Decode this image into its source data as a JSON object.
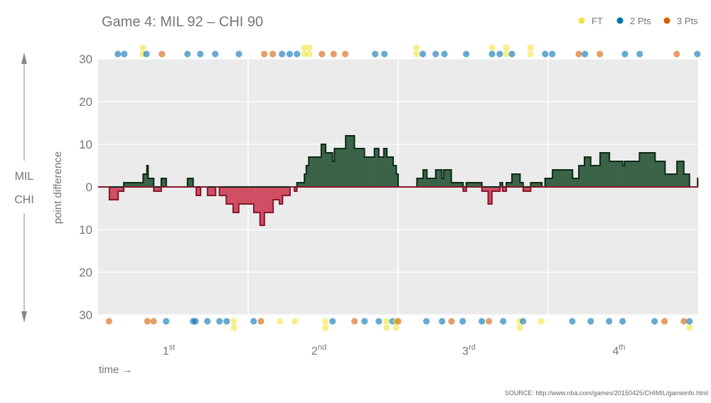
{
  "chart_data": {
    "type": "area",
    "title": "Game 4: MIL 92  –  CHI 90",
    "ylabel": "point difference",
    "xlabel": "time →",
    "side_labels": {
      "top": "MIL",
      "bottom": "CHI"
    },
    "source": "SOURCE: http://www.nba.com/games/20150425/CHIMIL/gameinfo.html",
    "xlim": [
      0,
      48
    ],
    "ylim": [
      -30,
      30
    ],
    "yticks": [
      30,
      20,
      10,
      0,
      -10,
      -20,
      -30
    ],
    "ytick_labels": [
      "30",
      "20",
      "10",
      "0",
      "10",
      "20",
      "30"
    ],
    "quarters": [
      {
        "num": "1",
        "sup": "st"
      },
      {
        "num": "2",
        "sup": "nd"
      },
      {
        "num": "3",
        "sup": "rd"
      },
      {
        "num": "4",
        "sup": "th"
      }
    ],
    "grid": true,
    "legend": {
      "position": "top-right",
      "items": [
        {
          "key": "FT",
          "label": "FT",
          "color": "#f0e442"
        },
        {
          "key": "2",
          "label": "2 Pts",
          "color": "#0072b2"
        },
        {
          "key": "3",
          "label": "3 Pts",
          "color": "#d55e00"
        }
      ]
    },
    "colors": {
      "mil_fill": "#3b6348",
      "mil_line": "#0c2a16",
      "chi_fill": "#d04f64",
      "chi_line": "#86172b"
    },
    "steps": [
      [
        0,
        0
      ],
      [
        0.9,
        -3
      ],
      [
        1.6,
        -1
      ],
      [
        2.05,
        1
      ],
      [
        3.6,
        3
      ],
      [
        3.9,
        5
      ],
      [
        4.0,
        2
      ],
      [
        4.45,
        -1
      ],
      [
        5.05,
        2
      ],
      [
        5.45,
        0
      ],
      [
        7.15,
        2
      ],
      [
        7.6,
        0
      ],
      [
        7.85,
        -2
      ],
      [
        8.2,
        0
      ],
      [
        8.75,
        -2
      ],
      [
        9.4,
        0
      ],
      [
        9.7,
        -2
      ],
      [
        10.25,
        -4
      ],
      [
        10.8,
        -6
      ],
      [
        11.25,
        -4
      ],
      [
        12.45,
        -6
      ],
      [
        12.95,
        -9
      ],
      [
        13.3,
        -6
      ],
      [
        14.0,
        -3
      ],
      [
        14.5,
        -4
      ],
      [
        14.75,
        -2
      ],
      [
        15.35,
        0
      ],
      [
        15.7,
        -1
      ],
      [
        15.9,
        1
      ],
      [
        16.5,
        3
      ],
      [
        16.65,
        5
      ],
      [
        16.85,
        7
      ],
      [
        17.85,
        10
      ],
      [
        18.2,
        8
      ],
      [
        18.75,
        6
      ],
      [
        18.9,
        9
      ],
      [
        19.8,
        12
      ],
      [
        20.5,
        9
      ],
      [
        21.3,
        7
      ],
      [
        22.1,
        9
      ],
      [
        22.45,
        7
      ],
      [
        22.85,
        9
      ],
      [
        23.1,
        7
      ],
      [
        23.6,
        5
      ],
      [
        23.85,
        3
      ],
      [
        24.0,
        0
      ],
      [
        25.5,
        2
      ],
      [
        26.0,
        4
      ],
      [
        26.3,
        2
      ],
      [
        27.0,
        4
      ],
      [
        27.5,
        2
      ],
      [
        27.65,
        4
      ],
      [
        28.25,
        1
      ],
      [
        29.2,
        -1
      ],
      [
        29.45,
        1
      ],
      [
        30.7,
        -1
      ],
      [
        31.2,
        -4
      ],
      [
        31.5,
        -1
      ],
      [
        32.15,
        1
      ],
      [
        32.35,
        -1
      ],
      [
        32.65,
        1
      ],
      [
        33.1,
        3
      ],
      [
        33.75,
        1
      ],
      [
        34.0,
        -1
      ],
      [
        34.6,
        1
      ],
      [
        35.5,
        0
      ],
      [
        35.75,
        2
      ],
      [
        36.35,
        4
      ],
      [
        37.95,
        2
      ],
      [
        38.45,
        5
      ],
      [
        38.9,
        7
      ],
      [
        39.4,
        5
      ],
      [
        40.15,
        8
      ],
      [
        40.9,
        6
      ],
      [
        41.95,
        5
      ],
      [
        42.1,
        6
      ],
      [
        43.3,
        8
      ],
      [
        44.55,
        6
      ],
      [
        45.35,
        3
      ],
      [
        46.3,
        6
      ],
      [
        46.85,
        3
      ],
      [
        47.3,
        0
      ],
      [
        47.95,
        2
      ]
    ],
    "mil_scores": [
      [
        1.58,
        "2"
      ],
      [
        2.09,
        "2"
      ],
      [
        3.57,
        "FT"
      ],
      [
        3.57,
        "FT"
      ],
      [
        3.87,
        "2"
      ],
      [
        5.1,
        "3"
      ],
      [
        7.15,
        "2"
      ],
      [
        8.17,
        "2"
      ],
      [
        9.37,
        "2"
      ],
      [
        11.26,
        "2"
      ],
      [
        13.29,
        "3"
      ],
      [
        13.97,
        "3"
      ],
      [
        14.71,
        "2"
      ],
      [
        15.32,
        "2"
      ],
      [
        15.91,
        "2"
      ],
      [
        16.49,
        "FT"
      ],
      [
        16.49,
        "FT"
      ],
      [
        16.89,
        "FT"
      ],
      [
        16.89,
        "FT"
      ],
      [
        17.9,
        "3"
      ],
      [
        18.84,
        "3"
      ],
      [
        19.77,
        "3"
      ],
      [
        22.16,
        "2"
      ],
      [
        22.9,
        "2"
      ],
      [
        25.46,
        "FT"
      ],
      [
        25.46,
        "FT"
      ],
      [
        25.97,
        "2"
      ],
      [
        27.0,
        "2"
      ],
      [
        27.7,
        "2"
      ],
      [
        29.44,
        "2"
      ],
      [
        31.51,
        "2"
      ],
      [
        31.51,
        "FT"
      ],
      [
        32.12,
        "2"
      ],
      [
        32.63,
        "FT"
      ],
      [
        32.63,
        "FT"
      ],
      [
        33.1,
        "2"
      ],
      [
        34.58,
        "FT"
      ],
      [
        34.58,
        "FT"
      ],
      [
        35.76,
        "2"
      ],
      [
        36.32,
        "2"
      ],
      [
        38.45,
        "3"
      ],
      [
        38.94,
        "2"
      ],
      [
        40.13,
        "3"
      ],
      [
        42.14,
        "2"
      ],
      [
        43.32,
        "2"
      ],
      [
        46.28,
        "3"
      ],
      [
        47.93,
        "2"
      ]
    ],
    "chi_scores": [
      [
        0.87,
        "3"
      ],
      [
        3.94,
        "3"
      ],
      [
        4.44,
        "3"
      ],
      [
        5.44,
        "2"
      ],
      [
        7.6,
        "2"
      ],
      [
        7.79,
        "2"
      ],
      [
        8.74,
        "2"
      ],
      [
        9.71,
        "2"
      ],
      [
        10.28,
        "2"
      ],
      [
        10.86,
        "FT"
      ],
      [
        10.86,
        "FT"
      ],
      [
        12.44,
        "2"
      ],
      [
        13.02,
        "3"
      ],
      [
        14.54,
        "FT"
      ],
      [
        15.74,
        "FT"
      ],
      [
        18.18,
        "FT"
      ],
      [
        18.18,
        "FT"
      ],
      [
        18.75,
        "2"
      ],
      [
        20.51,
        "3"
      ],
      [
        21.31,
        "2"
      ],
      [
        22.45,
        "2"
      ],
      [
        23.07,
        "FT"
      ],
      [
        23.07,
        "FT"
      ],
      [
        23.55,
        "2"
      ],
      [
        23.83,
        "FT"
      ],
      [
        23.83,
        "FT"
      ],
      [
        24.0,
        "3"
      ],
      [
        26.26,
        "2"
      ],
      [
        27.51,
        "2"
      ],
      [
        28.27,
        "3"
      ],
      [
        29.16,
        "2"
      ],
      [
        30.69,
        "2"
      ],
      [
        31.26,
        "3"
      ],
      [
        32.4,
        "2"
      ],
      [
        33.71,
        "FT"
      ],
      [
        33.71,
        "FT"
      ],
      [
        33.99,
        "2"
      ],
      [
        35.45,
        "FT"
      ],
      [
        37.93,
        "2"
      ],
      [
        39.4,
        "2"
      ],
      [
        40.87,
        "2"
      ],
      [
        41.95,
        "2"
      ],
      [
        44.51,
        "2"
      ],
      [
        45.31,
        "3"
      ],
      [
        46.85,
        "3"
      ],
      [
        47.3,
        "2"
      ],
      [
        47.3,
        "FT"
      ]
    ]
  }
}
